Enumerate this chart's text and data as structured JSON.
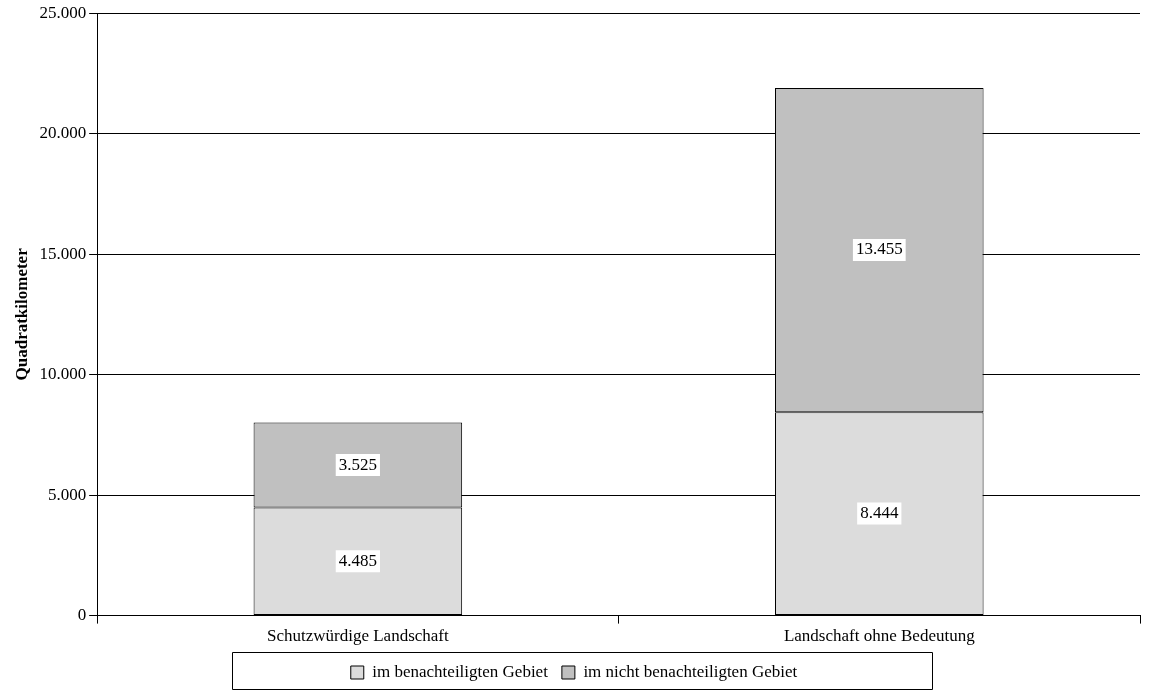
{
  "chart_data": {
    "type": "bar",
    "stacked": true,
    "ylabel": "Quadratkilometer",
    "categories": [
      "Schutzwürdige Landschaft",
      "Landschaft ohne Bedeutung"
    ],
    "series": [
      {
        "name": "im benachteiligten Gebiet",
        "color": "#dcdcdc",
        "values": [
          4485,
          8444
        ],
        "value_labels": [
          "4.485",
          "8.444"
        ]
      },
      {
        "name": "im nicht benachteiligten Gebiet",
        "color": "#c0c0c0",
        "values": [
          3525,
          13455
        ],
        "value_labels": [
          "3.525",
          "13.455"
        ]
      }
    ],
    "ylim": [
      0,
      25000
    ],
    "yticks": [
      0,
      {
        "value": 5000,
        "label": "5.000"
      },
      {
        "value": 10000,
        "label": "10.000"
      },
      {
        "value": 15000,
        "label": "15.000"
      },
      {
        "value": 20000,
        "label": "20.000"
      },
      {
        "value": 25000,
        "label": "25.000"
      }
    ],
    "grid": "y",
    "legend": "bottom"
  }
}
